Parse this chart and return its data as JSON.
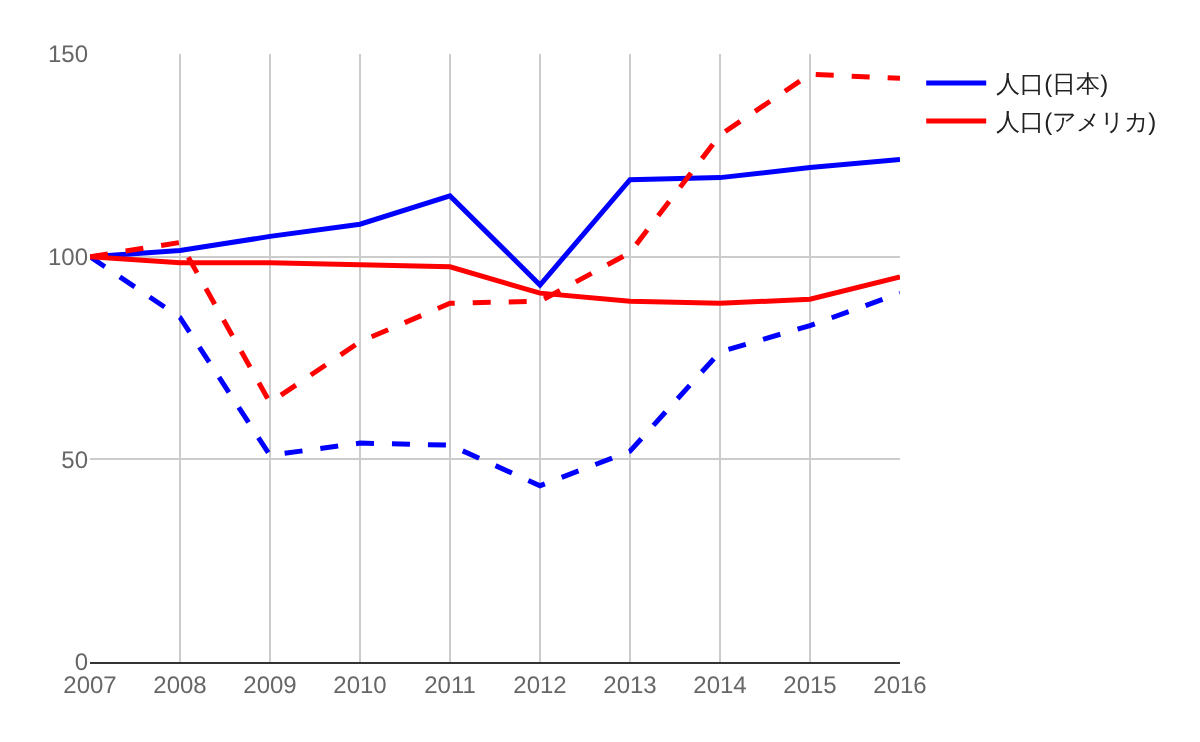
{
  "chart_data": {
    "type": "line",
    "x": [
      2007,
      2008,
      2009,
      2010,
      2011,
      2012,
      2013,
      2014,
      2015,
      2016
    ],
    "series": [
      {
        "name": "人口(日本)",
        "color": "#0000ff",
        "line_style": "solid",
        "values": [
          100,
          101.5,
          105,
          108,
          115,
          93,
          119,
          119.5,
          122,
          124
        ]
      },
      {
        "color": "#0000ff",
        "line_style": "dashed",
        "values": [
          100,
          85,
          51,
          54,
          53.5,
          43.5,
          52,
          76.5,
          83,
          91
        ]
      },
      {
        "name": "人口(アメリカ)",
        "color": "#ff0000",
        "line_style": "solid",
        "values": [
          100,
          98.5,
          98.5,
          98,
          97.5,
          91,
          89,
          88.5,
          89.5,
          95
        ]
      },
      {
        "color": "#ff0000",
        "line_style": "dashed",
        "values": [
          100,
          103.5,
          64,
          79,
          88.5,
          89,
          101,
          130,
          145,
          144
        ]
      }
    ],
    "xlim": [
      2007,
      2016
    ],
    "xticks": [
      2007,
      2008,
      2009,
      2010,
      2011,
      2012,
      2013,
      2014,
      2015,
      2016
    ],
    "ylim": [
      0,
      150
    ],
    "yticks": [
      0,
      50,
      100,
      150
    ],
    "grid": true,
    "legend": "top right",
    "marker": "none"
  }
}
